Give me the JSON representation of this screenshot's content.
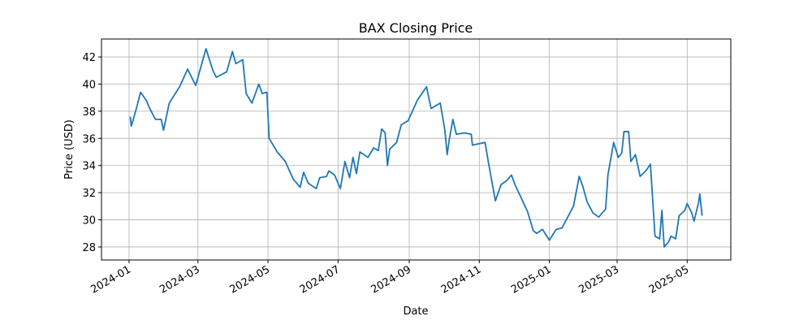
{
  "chart_data": {
    "type": "line",
    "title": "BAX Closing Price",
    "xlabel": "Date",
    "ylabel": "Price (USD)",
    "x": [
      "2024-01-02",
      "2024-01-03",
      "2024-01-08",
      "2024-01-11",
      "2024-01-16",
      "2024-01-19",
      "2024-01-24",
      "2024-01-29",
      "2024-01-31",
      "2024-02-05",
      "2024-02-08",
      "2024-02-14",
      "2024-02-21",
      "2024-02-28",
      "2024-03-08",
      "2024-03-14",
      "2024-03-17",
      "2024-03-26",
      "2024-03-31",
      "2024-04-03",
      "2024-04-09",
      "2024-04-12",
      "2024-04-17",
      "2024-04-23",
      "2024-04-26",
      "2024-04-30",
      "2024-05-02",
      "2024-05-09",
      "2024-05-16",
      "2024-05-23",
      "2024-05-29",
      "2024-06-01",
      "2024-06-05",
      "2024-06-12",
      "2024-06-15",
      "2024-06-21",
      "2024-06-23",
      "2024-06-28",
      "2024-07-03",
      "2024-07-07",
      "2024-07-11",
      "2024-07-14",
      "2024-07-17",
      "2024-07-20",
      "2024-07-27",
      "2024-08-01",
      "2024-08-05",
      "2024-08-08",
      "2024-08-11",
      "2024-08-13",
      "2024-08-15",
      "2024-08-21",
      "2024-08-25",
      "2024-08-31",
      "2024-09-08",
      "2024-09-16",
      "2024-09-20",
      "2024-09-28",
      "2024-10-02",
      "2024-10-04",
      "2024-10-06",
      "2024-10-09",
      "2024-10-12",
      "2024-10-19",
      "2024-10-25",
      "2024-10-26",
      "2024-11-06",
      "2024-11-09",
      "2024-11-15",
      "2024-11-20",
      "2024-11-25",
      "2024-11-29",
      "2024-12-02",
      "2024-12-07",
      "2024-12-13",
      "2024-12-18",
      "2024-12-21",
      "2024-12-26",
      "2025-01-01",
      "2025-01-07",
      "2025-01-12",
      "2025-01-17",
      "2025-01-22",
      "2025-01-27",
      "2025-01-30",
      "2025-02-03",
      "2025-02-08",
      "2025-02-13",
      "2025-02-19",
      "2025-02-21",
      "2025-02-26",
      "2025-03-02",
      "2025-03-05",
      "2025-03-07",
      "2025-03-11",
      "2025-03-13",
      "2025-03-17",
      "2025-03-21",
      "2025-03-26",
      "2025-03-30",
      "2025-04-03",
      "2025-04-07",
      "2025-04-09",
      "2025-04-11",
      "2025-04-15",
      "2025-04-17",
      "2025-04-21",
      "2025-04-24",
      "2025-04-29",
      "2025-05-01",
      "2025-05-05",
      "2025-05-07",
      "2025-05-11",
      "2025-05-12",
      "2025-05-14"
    ],
    "series": [
      {
        "name": "BAX",
        "color": "#1f77b4",
        "values": [
          37.6,
          36.9,
          38.4,
          39.4,
          38.8,
          38.2,
          37.4,
          37.4,
          36.6,
          38.6,
          39.0,
          39.8,
          41.1,
          39.9,
          42.6,
          41.0,
          40.5,
          40.9,
          42.4,
          41.5,
          41.8,
          39.3,
          38.6,
          40.0,
          39.3,
          39.4,
          36.0,
          35.0,
          34.3,
          33.0,
          32.4,
          33.5,
          32.7,
          32.3,
          33.1,
          33.2,
          33.6,
          33.3,
          32.3,
          34.3,
          33.1,
          34.6,
          33.4,
          35.0,
          34.6,
          35.3,
          35.1,
          36.7,
          36.4,
          34.0,
          35.2,
          35.7,
          37.0,
          37.3,
          38.8,
          39.8,
          38.2,
          38.6,
          36.6,
          34.8,
          36.0,
          37.4,
          36.3,
          36.4,
          36.3,
          35.5,
          35.7,
          34.2,
          31.4,
          32.6,
          32.9,
          33.3,
          32.6,
          31.7,
          30.6,
          29.2,
          29.0,
          29.3,
          28.5,
          29.3,
          29.4,
          30.2,
          31.0,
          33.2,
          32.5,
          31.3,
          30.5,
          30.2,
          30.8,
          33.3,
          35.7,
          34.6,
          34.9,
          36.5,
          36.5,
          34.3,
          34.8,
          33.2,
          33.6,
          34.1,
          28.8,
          28.6,
          30.7,
          28.0,
          28.4,
          28.8,
          28.6,
          30.3,
          30.7,
          31.2,
          30.5,
          29.9,
          31.3,
          31.9,
          30.3
        ]
      }
    ],
    "xlim": [
      "2023-12-08",
      "2025-06-08"
    ],
    "xticks": [
      {
        "value": "2024-01-01",
        "label": "2024-01"
      },
      {
        "value": "2024-03-01",
        "label": "2024-03"
      },
      {
        "value": "2024-05-01",
        "label": "2024-05"
      },
      {
        "value": "2024-07-01",
        "label": "2024-07"
      },
      {
        "value": "2024-09-01",
        "label": "2024-09"
      },
      {
        "value": "2024-11-01",
        "label": "2024-11"
      },
      {
        "value": "2025-01-01",
        "label": "2025-01"
      },
      {
        "value": "2025-03-01",
        "label": "2025-03"
      },
      {
        "value": "2025-05-01",
        "label": "2025-05"
      }
    ],
    "ylim": [
      27.04,
      43.32
    ],
    "yticks": [
      28,
      30,
      32,
      34,
      36,
      38,
      40,
      42
    ],
    "grid": true
  }
}
